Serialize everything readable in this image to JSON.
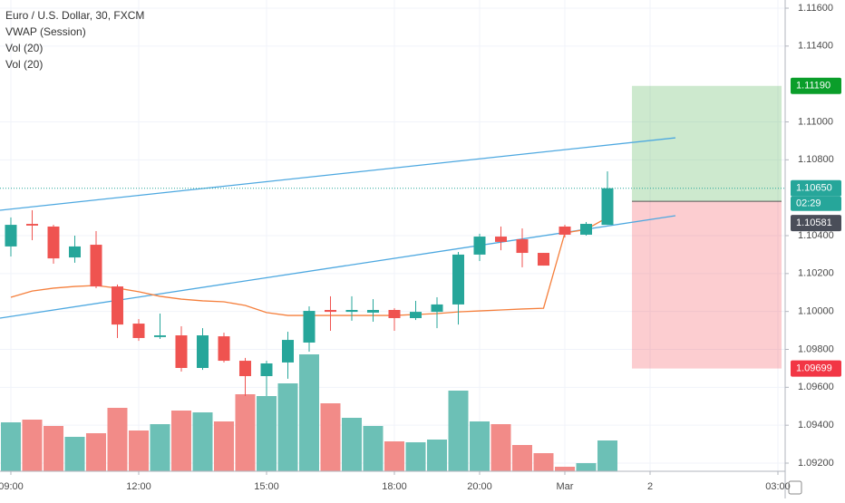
{
  "chart_data": {
    "type": "candlestick",
    "legend": [
      "Euro / U.S. Dollar, 30, FXCM",
      "VWAP (Session)",
      "Vol (20)",
      "Vol (20)"
    ],
    "categories": [
      "09:00",
      null,
      null,
      null,
      null,
      null,
      "12:00",
      null,
      null,
      null,
      null,
      null,
      "15:00",
      null,
      null,
      null,
      null,
      null,
      "18:00",
      null,
      null,
      null,
      "20:00",
      null,
      null,
      null,
      "Mar",
      null,
      null,
      null,
      "2",
      null,
      null,
      null,
      null,
      null,
      "03:00"
    ],
    "open": [
      1.10343,
      1.10462,
      1.10448,
      1.10285,
      1.10352,
      1.10132,
      1.09936,
      1.09865,
      1.09874,
      1.09702,
      1.09869,
      1.0974,
      1.09659,
      1.09731,
      1.09836,
      1.10008,
      1.09998,
      1.09994,
      1.10008,
      1.09965,
      1.09998,
      1.10037,
      1.103,
      1.10395,
      1.10381,
      1.10309,
      1.10448,
      1.10405,
      1.10457,
      null,
      null,
      null,
      null,
      null,
      null,
      null,
      null
    ],
    "high": [
      1.10496,
      1.10534,
      1.10457,
      1.104,
      1.10424,
      1.10142,
      1.0996,
      1.09989,
      1.09922,
      1.09912,
      1.09888,
      1.09755,
      1.0974,
      1.09893,
      1.10027,
      1.1008,
      1.1008,
      1.10065,
      1.10017,
      1.10056,
      1.10075,
      1.10314,
      1.1041,
      1.10448,
      1.10438,
      1.10309,
      1.10457,
      1.10472,
      1.10739,
      null,
      null,
      null,
      null,
      null,
      null,
      null,
      null
    ],
    "low": [
      1.1029,
      1.10376,
      1.10252,
      1.10257,
      1.10123,
      1.0986,
      1.09845,
      1.09855,
      1.09683,
      1.09692,
      1.09731,
      1.09554,
      1.09554,
      1.09645,
      1.09788,
      1.09898,
      1.09951,
      1.09946,
      1.09898,
      1.09955,
      1.09912,
      1.09931,
      1.10266,
      1.10323,
      1.10233,
      1.10242,
      1.1039,
      1.104,
      1.10457,
      null,
      null,
      null,
      null,
      null,
      null,
      null,
      null
    ],
    "close": [
      1.10457,
      1.10453,
      1.1028,
      1.10343,
      1.10132,
      1.09931,
      1.0986,
      1.09874,
      1.09702,
      1.09874,
      1.0974,
      1.09659,
      1.09726,
      1.0985,
      1.10003,
      1.09998,
      1.10008,
      1.10008,
      1.09965,
      1.09998,
      1.10037,
      1.103,
      1.10395,
      1.10367,
      1.10309,
      1.10242,
      1.10405,
      1.10462,
      1.1065,
      null,
      null,
      null,
      null,
      null,
      null,
      null,
      null
    ],
    "volume": [
      54,
      57,
      50,
      38,
      42,
      70,
      45,
      52,
      67,
      65,
      55,
      85,
      83,
      97,
      129,
      75,
      59,
      50,
      33,
      32,
      35,
      89,
      55,
      52,
      29,
      20,
      5,
      9,
      34,
      null,
      null,
      null,
      null,
      null,
      null,
      null,
      null
    ],
    "vwap": [
      1.10075,
      1.10108,
      1.10123,
      1.10132,
      1.10137,
      1.10123,
      1.10104,
      1.1008,
      1.10065,
      1.10056,
      1.10051,
      1.10032,
      1.09994,
      1.09979,
      1.09979,
      1.09979,
      1.09979,
      1.09979,
      1.09979,
      1.09984,
      1.09989,
      1.09998,
      1.10003,
      1.10008,
      1.10013,
      1.10017,
      1.10414,
      1.10433,
      1.10496,
      null,
      null,
      null,
      null,
      null,
      null,
      null,
      null
    ],
    "trendlines": [
      {
        "x": [
          -0.51,
          31.19
        ],
        "y": [
          1.10534,
          1.10916
        ]
      },
      {
        "x": [
          -0.51,
          31.19
        ],
        "y": [
          1.09965,
          1.10505
        ]
      }
    ],
    "position": {
      "x": [
        29.15,
        36.17
      ],
      "target": {
        "value": 1.1119,
        "label": "1.11190"
      },
      "entry": {
        "value": 1.10581,
        "label": "1.10581"
      },
      "stop": {
        "value": 1.09699,
        "label": "1.09699"
      }
    },
    "current_price": {
      "value": 1.1065,
      "label": "1.10650"
    },
    "countdown": "02:29",
    "xlim": [
      -0.51,
      36.34
    ],
    "ylim": [
      1.09157,
      1.11643
    ],
    "volume_lim": [
      0,
      520
    ],
    "yticks": [
      {
        "value": 1.116,
        "label": "1.11600"
      },
      {
        "value": 1.114,
        "label": "1.11400"
      },
      {
        "value": 1.11,
        "label": "1.11000"
      },
      {
        "value": 1.108,
        "label": "1.10800"
      },
      {
        "value": 1.104,
        "label": "1.10400"
      },
      {
        "value": 1.102,
        "label": "1.10200"
      },
      {
        "value": 1.1,
        "label": "1.10000"
      },
      {
        "value": 1.098,
        "label": "1.09800"
      },
      {
        "value": 1.096,
        "label": "1.09600"
      },
      {
        "value": 1.094,
        "label": "1.09400"
      },
      {
        "value": 1.092,
        "label": "1.09200"
      }
    ],
    "grid": true,
    "up_color": "#26a69a",
    "down_color": "#ef5350",
    "volume_up_color": "#6cc0b6",
    "volume_down_color": "#f28b88",
    "vwap_color": "#f57f3c",
    "trendline_color": "#4da8e0",
    "target_color": "#0a9e2a",
    "stop_color": "#f23645",
    "entry_color": "#4a4e59"
  }
}
